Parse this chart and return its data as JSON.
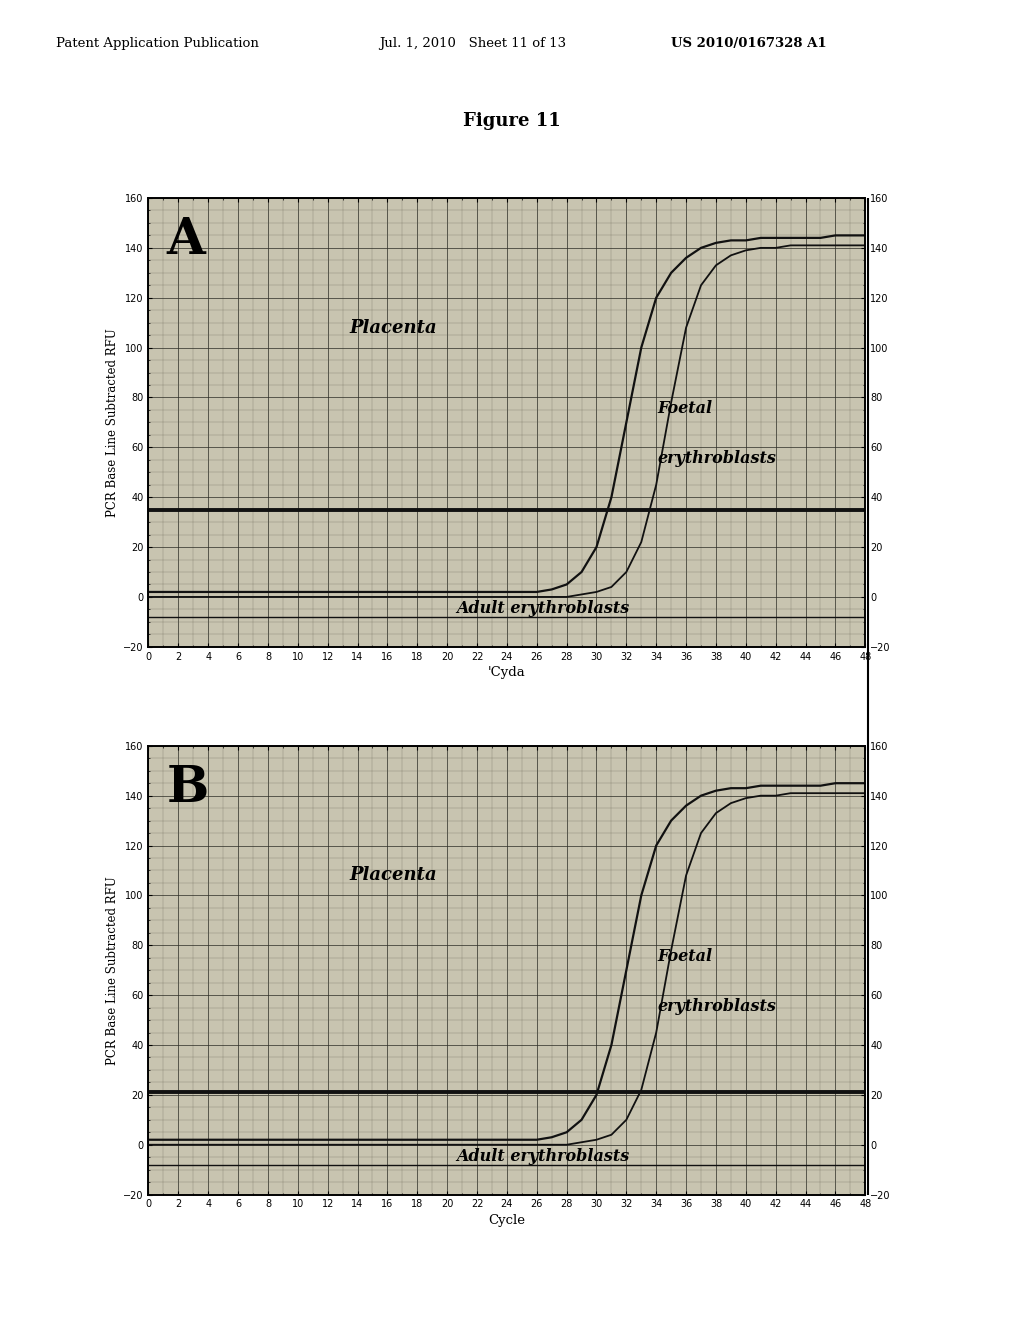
{
  "header_left": "Patent Application Publication",
  "header_mid": "Jul. 1, 2010   Sheet 11 of 13",
  "header_right": "US 2010/0167328 A1",
  "figure_title": "Figure 11",
  "panel_A_label": "A",
  "panel_B_label": "B",
  "xlabel_A": "'Cyda",
  "xlabel_B": "Cycle",
  "ylabel": "PCR Base Line Subtracted RFU",
  "xlim": [
    0,
    48
  ],
  "ylim": [
    -20,
    160
  ],
  "xticks": [
    0,
    2,
    4,
    6,
    8,
    10,
    12,
    14,
    16,
    18,
    20,
    22,
    24,
    26,
    28,
    30,
    32,
    34,
    36,
    38,
    40,
    42,
    44,
    46,
    48
  ],
  "yticks": [
    -20,
    0,
    20,
    40,
    60,
    80,
    100,
    120,
    140,
    160
  ],
  "plot_bg": "#c8c4b0",
  "line_color": "#111111",
  "placenta_label": "Placenta",
  "foetal_label": "Foetal",
  "erythro_label": "erythroblasts",
  "adult_label": "Adult erythroblasts",
  "placenta_x": [
    0,
    2,
    4,
    6,
    8,
    10,
    12,
    14,
    16,
    18,
    20,
    22,
    24,
    25,
    26,
    27,
    28,
    29,
    30,
    31,
    32,
    33,
    34,
    35,
    36,
    37,
    38,
    39,
    40,
    41,
    42,
    43,
    44,
    45,
    46,
    47,
    48
  ],
  "placenta_y_A": [
    2,
    2,
    2,
    2,
    2,
    2,
    2,
    2,
    2,
    2,
    2,
    2,
    2,
    2,
    2,
    3,
    5,
    10,
    20,
    40,
    70,
    100,
    120,
    130,
    136,
    140,
    142,
    143,
    143,
    144,
    144,
    144,
    144,
    144,
    145,
    145,
    145
  ],
  "foetal_x": [
    0,
    2,
    4,
    6,
    8,
    10,
    12,
    14,
    16,
    18,
    20,
    22,
    24,
    26,
    28,
    30,
    31,
    32,
    33,
    34,
    35,
    36,
    37,
    38,
    39,
    40,
    41,
    42,
    43,
    44,
    45,
    46,
    47,
    48
  ],
  "foetal_y_A": [
    0,
    0,
    0,
    0,
    0,
    0,
    0,
    0,
    0,
    0,
    0,
    0,
    0,
    0,
    0,
    2,
    4,
    10,
    22,
    45,
    78,
    108,
    125,
    133,
    137,
    139,
    140,
    140,
    141,
    141,
    141,
    141,
    141,
    141
  ],
  "adult_y_A": -8,
  "hline_A_y": 35,
  "placenta_y_B": [
    2,
    2,
    2,
    2,
    2,
    2,
    2,
    2,
    2,
    2,
    2,
    2,
    2,
    2,
    2,
    3,
    5,
    10,
    20,
    40,
    70,
    100,
    120,
    130,
    136,
    140,
    142,
    143,
    143,
    144,
    144,
    144,
    144,
    144,
    145,
    145,
    145
  ],
  "foetal_y_B": [
    0,
    0,
    0,
    0,
    0,
    0,
    0,
    0,
    0,
    0,
    0,
    0,
    0,
    0,
    0,
    2,
    4,
    10,
    22,
    45,
    78,
    108,
    125,
    133,
    137,
    139,
    140,
    140,
    141,
    141,
    141,
    141,
    141,
    141
  ],
  "adult_y_B": -8,
  "hline_B_y": 21,
  "right_bracket_x": 0.97
}
